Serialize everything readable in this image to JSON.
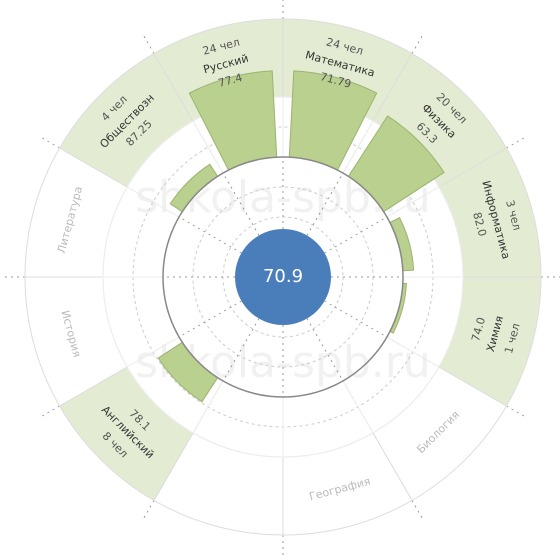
{
  "chart_data": {
    "type": "radial",
    "center_value": 70.9,
    "watermark": "shkola-spb.ru",
    "categories": [
      "Математика",
      "Физика",
      "Информатика",
      "Химия",
      "Биология",
      "География",
      null,
      "Английский",
      "История",
      "Литература",
      "Обществозн",
      "Русский"
    ],
    "scores": [
      71.79,
      63.3,
      82.0,
      74.0,
      null,
      null,
      null,
      78.1,
      null,
      null,
      87.25,
      77.4
    ],
    "score_labels": [
      "71.79",
      "63.3",
      "82.0",
      "74.0",
      null,
      null,
      null,
      "78.1",
      null,
      null,
      "87.25",
      "77.4"
    ],
    "counts": [
      24,
      20,
      3,
      1,
      null,
      null,
      null,
      8,
      null,
      null,
      4,
      24
    ],
    "count_labels": [
      "24 чел",
      "20 чел",
      "3 чел",
      "1 чел",
      null,
      null,
      null,
      "8 чел",
      null,
      null,
      "4 чел",
      "24 чел"
    ],
    "color": "#b9d08e",
    "ring_color": "#e3ecd3",
    "center_color": "#4a7ebb"
  }
}
